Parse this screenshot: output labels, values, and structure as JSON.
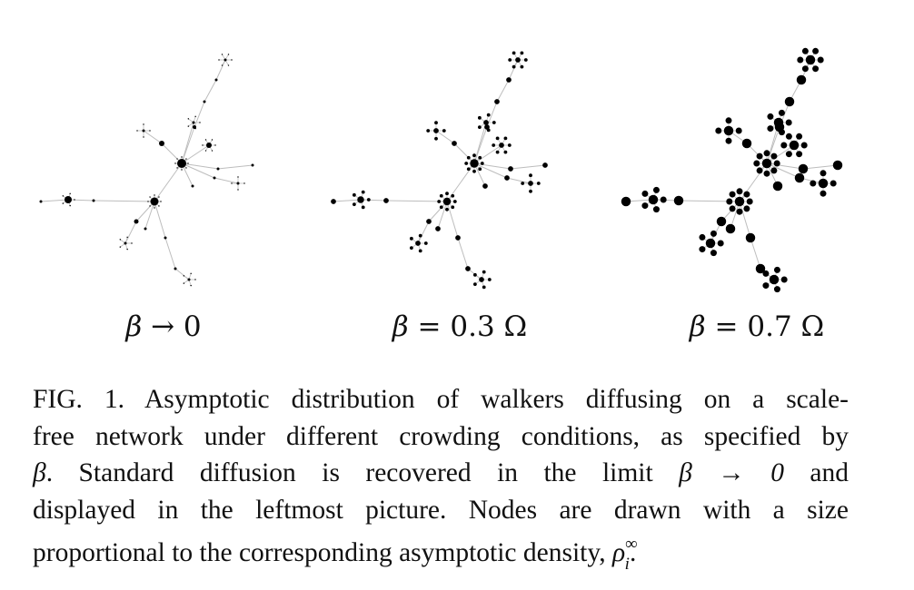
{
  "panels": [
    {
      "label": "β → 0",
      "beta_symbol": "β",
      "rest": " → 0",
      "crowding": 0
    },
    {
      "label": "β = 0.3 Ω",
      "beta_symbol": "β",
      "rest": " = 0.3 Ω",
      "crowding": 0.3
    },
    {
      "label": "β = 0.7 Ω",
      "beta_symbol": "β",
      "rest": " = 0.7 Ω",
      "crowding": 0.7
    }
  ],
  "caption": {
    "fig_label": "FIG. 1.",
    "line1": "Asymptotic distribution of walkers diffusing on a scale-",
    "line2": "free network under different crowding conditions, as specified by",
    "beta": "β",
    "line3_rest": ". Standard diffusion is recovered in the limit",
    "line3_expr": "β → 0",
    "line3_end": "and",
    "line4": "displayed in the leftmost picture. Nodes are drawn with a size",
    "line5": "proportional to the corresponding asymptotic density,",
    "rho": "ρ",
    "rho_sup": "∞",
    "rho_sub": "i",
    "period": "."
  },
  "colors": {
    "node": "#000000",
    "edge": "#bdbdbd",
    "text": "#111111"
  }
}
